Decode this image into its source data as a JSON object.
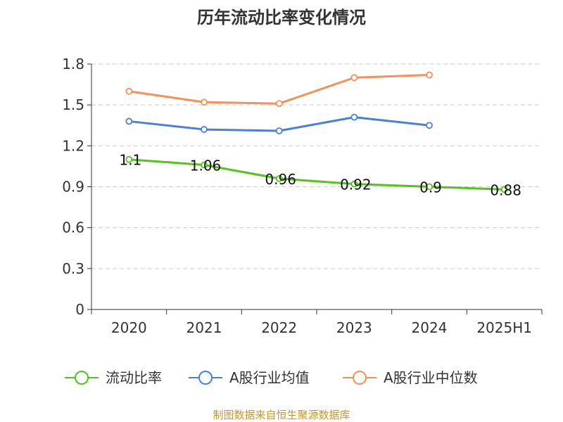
{
  "chart_data": {
    "type": "line",
    "title": "历年流动比率变化情况",
    "categories": [
      "2020",
      "2021",
      "2022",
      "2023",
      "2024",
      "2025H1"
    ],
    "ylim": [
      0,
      1.8
    ],
    "yticks": [
      "0",
      "0.3",
      "0.6",
      "0.9",
      "1.2",
      "1.5",
      "1.8"
    ],
    "grid": true,
    "legend_position": "bottom",
    "series": [
      {
        "name": "流动比率",
        "color": "#52c41a",
        "values": [
          1.1,
          1.06,
          0.96,
          0.92,
          0.9,
          0.88
        ],
        "data_labels": [
          "1.1",
          "1.06",
          "0.96",
          "0.92",
          "0.9",
          "0.88"
        ]
      },
      {
        "name": "A股行业均值",
        "color": "#4a7fdb",
        "values": [
          1.38,
          1.32,
          1.31,
          1.41,
          1.35,
          null
        ]
      },
      {
        "name": "A股行业中位数",
        "color": "#f5915a",
        "values": [
          1.6,
          1.52,
          1.51,
          1.7,
          1.72,
          null
        ]
      }
    ]
  },
  "source_text": "制图数据来自恒生聚源数据库"
}
